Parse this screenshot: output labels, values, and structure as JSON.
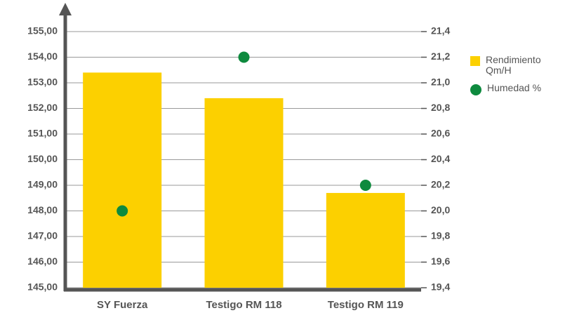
{
  "chart_data": {
    "type": "bar",
    "categories": [
      "SY Fuerza",
      "Testigo RM 118",
      "Testigo RM 119"
    ],
    "series": [
      {
        "name": "Rendimiento Qm/H",
        "color": "#fcd000",
        "type": "bar",
        "values": [
          153.4,
          152.4,
          148.7
        ]
      },
      {
        "name": "Humedad %",
        "color": "#0e8a3e",
        "type": "scatter",
        "axis": "y2",
        "values": [
          20.0,
          21.2,
          20.2
        ]
      }
    ],
    "ylim": [
      145,
      155
    ],
    "yticks": [
      {
        "value": 145,
        "label": "145,00"
      },
      {
        "value": 146,
        "label": "146,00"
      },
      {
        "value": 147,
        "label": "147,00"
      },
      {
        "value": 148,
        "label": "148,00"
      },
      {
        "value": 149,
        "label": "149,00"
      },
      {
        "value": 150,
        "label": "150,00"
      },
      {
        "value": 151,
        "label": "151,00"
      },
      {
        "value": 152,
        "label": "152,00"
      },
      {
        "value": 153,
        "label": "153,00"
      },
      {
        "value": 154,
        "label": "154,00"
      },
      {
        "value": 155,
        "label": "155,00"
      }
    ],
    "y2lim": [
      19.4,
      21.4
    ],
    "y2ticks": [
      {
        "value": 19.4,
        "label": "19,4"
      },
      {
        "value": 19.6,
        "label": "19,6"
      },
      {
        "value": 19.8,
        "label": "19,8"
      },
      {
        "value": 20.0,
        "label": "20,0"
      },
      {
        "value": 20.2,
        "label": "20,2"
      },
      {
        "value": 20.4,
        "label": "20,4"
      },
      {
        "value": 20.6,
        "label": "20,6"
      },
      {
        "value": 20.8,
        "label": "20,8"
      },
      {
        "value": 21.0,
        "label": "21,0"
      },
      {
        "value": 21.2,
        "label": "21,2"
      },
      {
        "value": 21.4,
        "label": "21,4"
      }
    ],
    "grid": true,
    "legend": "right"
  }
}
